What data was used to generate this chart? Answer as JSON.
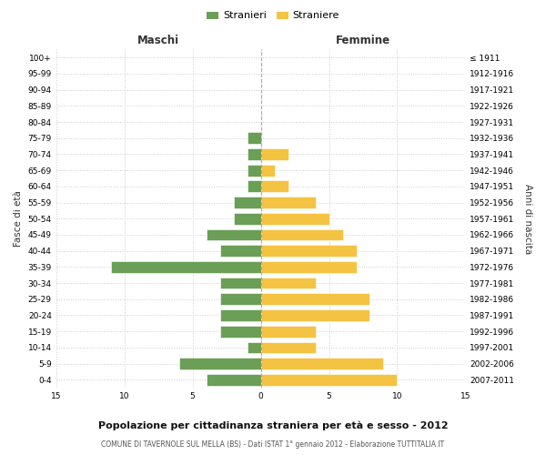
{
  "age_groups": [
    "0-4",
    "5-9",
    "10-14",
    "15-19",
    "20-24",
    "25-29",
    "30-34",
    "35-39",
    "40-44",
    "45-49",
    "50-54",
    "55-59",
    "60-64",
    "65-69",
    "70-74",
    "75-79",
    "80-84",
    "85-89",
    "90-94",
    "95-99",
    "100+"
  ],
  "birth_years": [
    "2007-2011",
    "2002-2006",
    "1997-2001",
    "1992-1996",
    "1987-1991",
    "1982-1986",
    "1977-1981",
    "1972-1976",
    "1967-1971",
    "1962-1966",
    "1957-1961",
    "1952-1956",
    "1947-1951",
    "1942-1946",
    "1937-1941",
    "1932-1936",
    "1927-1931",
    "1922-1926",
    "1917-1921",
    "1912-1916",
    "≤ 1911"
  ],
  "males": [
    4,
    6,
    1,
    3,
    3,
    3,
    3,
    11,
    3,
    4,
    2,
    2,
    1,
    1,
    1,
    1,
    0,
    0,
    0,
    0,
    0
  ],
  "females": [
    10,
    9,
    4,
    4,
    8,
    8,
    4,
    7,
    7,
    6,
    5,
    4,
    2,
    1,
    2,
    0,
    0,
    0,
    0,
    0,
    0
  ],
  "male_color": "#6b9e57",
  "female_color": "#f5c342",
  "background_color": "#ffffff",
  "grid_color": "#cccccc",
  "center_line_color": "#aaaaaa",
  "title": "Popolazione per cittadinanza straniera per età e sesso - 2012",
  "subtitle": "COMUNE DI TAVERNOLE SUL MELLA (BS) - Dati ISTAT 1° gennaio 2012 - Elaborazione TUTTITALIA.IT",
  "xlabel_left": "Maschi",
  "xlabel_right": "Femmine",
  "ylabel_left": "Fasce di età",
  "ylabel_right": "Anni di nascita",
  "legend_males": "Stranieri",
  "legend_females": "Straniere",
  "xlim": 15
}
